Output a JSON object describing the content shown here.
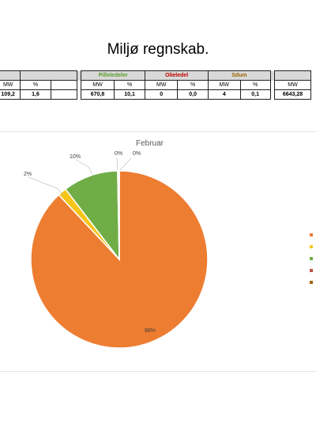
{
  "title": "Miljø regnskab.",
  "table": {
    "groups": [
      {
        "label": "",
        "color": "#000000"
      },
      {
        "label": "",
        "color": "#e6d100"
      },
      {
        "label": "Pilleledeler",
        "color": "#5a9d2a"
      },
      {
        "label": "Olieledel",
        "color": "#c00000"
      },
      {
        "label": "Sdum",
        "color": "#9c6500"
      },
      {
        "label": "",
        "color": "#000000"
      }
    ],
    "units": [
      "MW",
      "%",
      "MW",
      "%",
      "MW",
      "%",
      "MW",
      "%",
      "MW"
    ],
    "values": [
      "109,2",
      "1,6",
      "670,8",
      "10,1",
      "0",
      "0,0",
      "4",
      "0,1",
      "6643,28"
    ]
  },
  "chart_data": {
    "type": "pie",
    "title": "Februar",
    "slices": [
      {
        "label": "88%",
        "value": 88,
        "color": "#ed7d31"
      },
      {
        "label": "2%",
        "value": 1.6,
        "color": "#f5c518"
      },
      {
        "label": "10%",
        "value": 10.1,
        "color": "#70ad47"
      },
      {
        "label": "0%",
        "value": 0.1,
        "color": "#c0504d"
      },
      {
        "label": "0%",
        "value": 0.2,
        "color": "#a0522d"
      }
    ],
    "legend_colors": [
      "#ed7d31",
      "#f5c518",
      "#70ad47",
      "#c0504d",
      "#9c6500"
    ]
  }
}
